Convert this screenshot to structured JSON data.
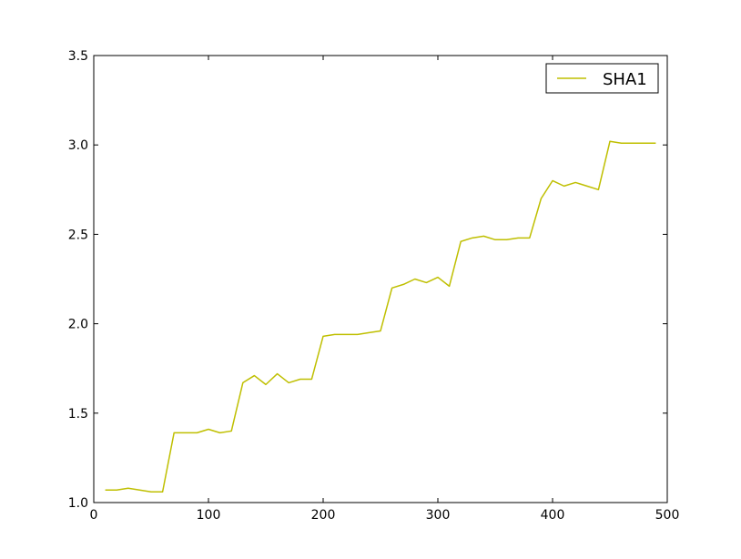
{
  "chart_data": {
    "type": "line",
    "title": "",
    "xlabel": "",
    "ylabel": "",
    "xlim": [
      0,
      500
    ],
    "ylim": [
      1.0,
      3.5
    ],
    "xticks": [
      0,
      100,
      200,
      300,
      400,
      500
    ],
    "xtick_labels": [
      "0",
      "100",
      "200",
      "300",
      "400",
      "500"
    ],
    "yticks": [
      1.0,
      1.5,
      2.0,
      2.5,
      3.0,
      3.5
    ],
    "ytick_labels": [
      "1.0",
      "1.5",
      "2.0",
      "2.5",
      "3.0",
      "3.5"
    ],
    "grid": false,
    "legend": {
      "position": "top-right",
      "entries": [
        "SHA1"
      ]
    },
    "series": [
      {
        "name": "SHA1",
        "color": "#bfbf00",
        "x": [
          10,
          20,
          30,
          40,
          50,
          60,
          70,
          80,
          90,
          100,
          110,
          120,
          130,
          140,
          150,
          160,
          170,
          180,
          190,
          200,
          210,
          220,
          230,
          240,
          250,
          260,
          270,
          280,
          290,
          300,
          310,
          320,
          330,
          340,
          350,
          360,
          370,
          380,
          390,
          400,
          410,
          420,
          430,
          440,
          450,
          460,
          470,
          480,
          490
        ],
        "y": [
          1.07,
          1.07,
          1.08,
          1.07,
          1.06,
          1.06,
          1.39,
          1.39,
          1.39,
          1.41,
          1.39,
          1.4,
          1.67,
          1.71,
          1.66,
          1.72,
          1.67,
          1.69,
          1.69,
          1.93,
          1.94,
          1.94,
          1.94,
          1.95,
          1.96,
          2.2,
          2.22,
          2.25,
          2.23,
          2.26,
          2.21,
          2.46,
          2.48,
          2.49,
          2.47,
          2.47,
          2.48,
          2.48,
          2.7,
          2.8,
          2.77,
          2.79,
          2.77,
          2.75,
          3.02,
          3.01,
          3.01,
          3.01,
          3.01
        ]
      }
    ]
  }
}
